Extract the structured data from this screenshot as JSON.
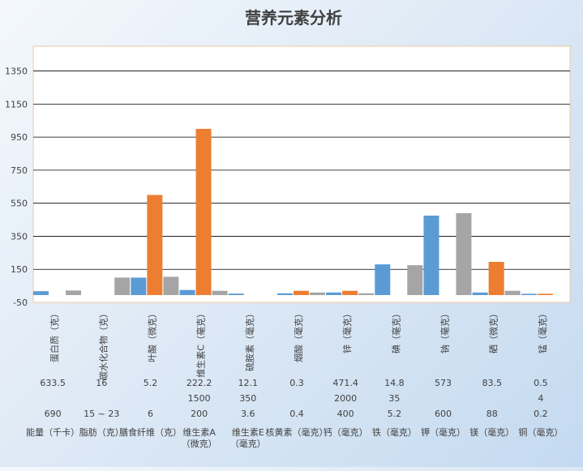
{
  "colors": {
    "series1": "#5b9bd5",
    "series2": "#ed7d31",
    "series3": "#a5a5a5",
    "plot_background": "#ffffff",
    "plot_border": "#f2c7a2",
    "gridline": "#000000",
    "text": "#404040"
  },
  "chart_data": {
    "type": "bar",
    "title": "营养元素分析",
    "xlabel": "",
    "ylabel": "",
    "ylim": [
      -50,
      1500
    ],
    "yticks": [
      -50,
      150,
      350,
      550,
      750,
      950,
      1150,
      1350
    ],
    "grid": true,
    "legend": "none",
    "categories": [
      "蛋白质（克）",
      "碳水化合物（克）",
      "叶酸（微克）",
      "维生素C（毫克）",
      "硫胺素（毫克）",
      "烟酸（毫克）",
      "锌（毫克）",
      "碘（毫克）",
      "钠（毫克）",
      "硒（微克）",
      "锰（毫克）"
    ],
    "series": [
      {
        "values": [
          18,
          0,
          100,
          25,
          3,
          5,
          10,
          180,
          475,
          10,
          2
        ]
      },
      {
        "values": [
          0,
          0,
          600,
          1000,
          0,
          20,
          20,
          0,
          0,
          195,
          2
        ]
      },
      {
        "values": [
          22,
          100,
          105,
          20,
          0,
          10,
          5,
          175,
          490,
          20,
          0
        ]
      }
    ],
    "table_rows": [
      [
        "633.5",
        "16",
        "5.2",
        "222.2",
        "12.1",
        "0.3",
        "471.4",
        "14.8",
        "573",
        "83.5",
        "0.5"
      ],
      [
        "",
        "",
        "",
        "1500",
        "350",
        "",
        "2000",
        "35",
        "",
        "",
        "4"
      ],
      [
        "690",
        "15 ~ 23",
        "6",
        "200",
        "3.6",
        "0.4",
        "400",
        "5.2",
        "600",
        "88",
        "0.2"
      ]
    ],
    "bottom_labels": [
      "能量（千卡）",
      "脂肪（克）",
      "膳食纤维（克）",
      "维生素A（微克）",
      "维生素E（毫克）",
      "核黄素（毫克）",
      "钙（毫克）",
      "铁（毫克）",
      "钾（毫克）",
      "镁（毫克）",
      "铜（毫克）"
    ]
  }
}
